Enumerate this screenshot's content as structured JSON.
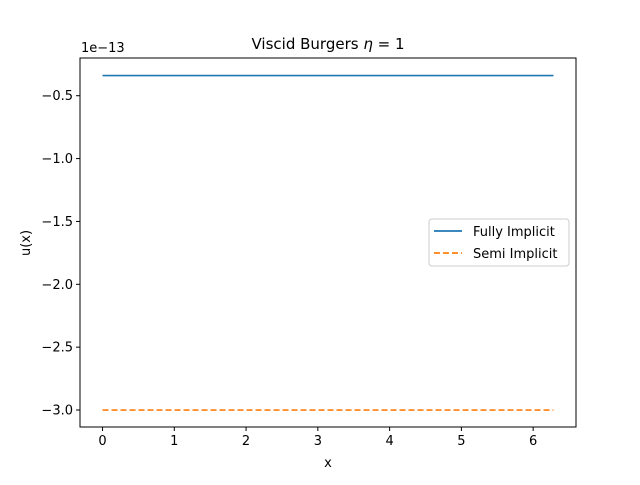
{
  "chart_data": {
    "type": "line",
    "title_prefix": "Viscid Burgers ",
    "title_math_symbol": "η",
    "title_math_rest": " = 1",
    "xlabel": "x",
    "ylabel": "u(x)",
    "offset_label": "1e−13",
    "xlim": [
      -0.314,
      6.597
    ],
    "ylim": [
      -3.135,
      -0.2
    ],
    "x_ticks": [
      0,
      1,
      2,
      3,
      4,
      5,
      6
    ],
    "x_tick_labels": [
      "0",
      "1",
      "2",
      "3",
      "4",
      "5",
      "6"
    ],
    "y_ticks": [
      -0.5,
      -1.0,
      -1.5,
      -2.0,
      -2.5,
      -3.0
    ],
    "y_tick_labels": [
      "−0.5",
      "−1.0",
      "−1.5",
      "−2.0",
      "−2.5",
      "−3.0"
    ],
    "grid": false,
    "legend_position": "center-right",
    "series": [
      {
        "name": "Fully Implicit",
        "color": "#1f77b4",
        "style": "solid",
        "x": [
          0,
          6.283
        ],
        "values": [
          -0.34,
          -0.34
        ]
      },
      {
        "name": "Semi Implicit",
        "color": "#ff7f0e",
        "style": "dashed",
        "x": [
          0,
          6.283
        ],
        "values": [
          -3.0,
          -3.0
        ]
      }
    ]
  }
}
